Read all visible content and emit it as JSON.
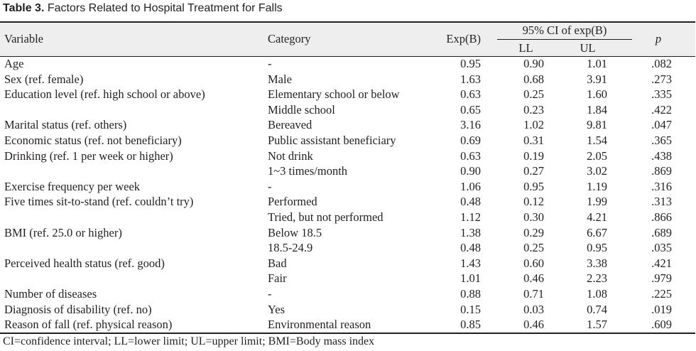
{
  "caption": {
    "label": "Table 3.",
    "title": "Factors Related to Hospital Treatment for Falls"
  },
  "header": {
    "variable": "Variable",
    "category": "Category",
    "exp_b": "Exp(B)",
    "ci_group": "95% CI of exp(B)",
    "ll": "LL",
    "ul": "UL",
    "p": "p"
  },
  "rows": [
    {
      "variable": "Age",
      "category": "-",
      "exp": "0.95",
      "ll": "0.90",
      "ul": "1.01",
      "p": ".082"
    },
    {
      "variable": "Sex (ref. female)",
      "category": "Male",
      "exp": "1.63",
      "ll": "0.68",
      "ul": "3.91",
      "p": ".273"
    },
    {
      "variable": "Education level (ref. high school or above)",
      "category": "Elementary school or below",
      "exp": "0.63",
      "ll": "0.25",
      "ul": "1.60",
      "p": ".335"
    },
    {
      "variable": "",
      "category": "Middle school",
      "exp": "0.65",
      "ll": "0.23",
      "ul": "1.84",
      "p": ".422"
    },
    {
      "variable": "Marital status (ref. others)",
      "category": "Bereaved",
      "exp": "3.16",
      "ll": "1.02",
      "ul": "9.81",
      "p": ".047"
    },
    {
      "variable": "Economic status  (ref. not beneficiary)",
      "category": "Public assistant beneficiary",
      "exp": "0.69",
      "ll": "0.31",
      "ul": "1.54",
      "p": ".365"
    },
    {
      "variable": "Drinking  (ref. 1 per week or higher)",
      "category": "Not drink",
      "exp": "0.63",
      "ll": "0.19",
      "ul": "2.05",
      "p": ".438"
    },
    {
      "variable": "",
      "category": "1~3 times/month",
      "exp": "0.90",
      "ll": "0.27",
      "ul": "3.02",
      "p": ".869"
    },
    {
      "variable": "Exercise frequency per week",
      "category": "-",
      "exp": "1.06",
      "ll": "0.95",
      "ul": "1.19",
      "p": ".316"
    },
    {
      "variable": "Five times sit-to-stand (ref. couldn’t try)",
      "category": "Performed",
      "exp": "0.48",
      "ll": "0.12",
      "ul": "1.99",
      "p": ".313"
    },
    {
      "variable": "",
      "category": "Tried, but not performed",
      "exp": "1.12",
      "ll": "0.30",
      "ul": "4.21",
      "p": ".866"
    },
    {
      "variable": "BMI (ref. 25.0 or higher)",
      "category": "Below 18.5",
      "exp": "1.38",
      "ll": "0.29",
      "ul": "6.67",
      "p": ".689"
    },
    {
      "variable": "",
      "category": "18.5-24.9",
      "exp": "0.48",
      "ll": "0.25",
      "ul": "0.95",
      "p": ".035"
    },
    {
      "variable": "Perceived health status  (ref. good)",
      "category": "Bad",
      "exp": "1.43",
      "ll": "0.60",
      "ul": "3.38",
      "p": ".421"
    },
    {
      "variable": "",
      "category": "Fair",
      "exp": "1.01",
      "ll": "0.46",
      "ul": "2.23",
      "p": ".979"
    },
    {
      "variable": "Number of diseases",
      "category": "-",
      "exp": "0.88",
      "ll": "0.71",
      "ul": "1.08",
      "p": ".225"
    },
    {
      "variable": "Diagnosis of disability (ref. no)",
      "category": "Yes",
      "exp": "0.15",
      "ll": "0.03",
      "ul": "0.74",
      "p": ".019"
    },
    {
      "variable": "Reason of fall (ref. physical reason)",
      "category": "Environmental reason",
      "exp": "0.85",
      "ll": "0.46",
      "ul": "1.57",
      "p": ".609"
    }
  ],
  "footnote": "CI=confidence interval; LL=lower limit; UL=upper limit; BMI=Body mass index"
}
